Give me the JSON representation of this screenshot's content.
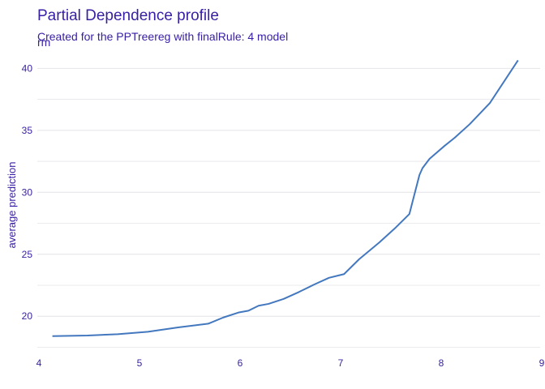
{
  "colors": {
    "text": "#371ea3",
    "grid": "#e4e4e8",
    "line": "#4378bf",
    "background": "#ffffff"
  },
  "chart_data": {
    "type": "line",
    "title": "Partial Dependence profile",
    "subtitle_lines": [
      "Created for the PPTreereg with finalRule:  4 model",
      "rm"
    ],
    "xlabel": "",
    "ylabel": "average prediction",
    "xlim": [
      4.0,
      9.0
    ],
    "ylim": [
      17.4,
      41.2
    ],
    "xticks": [
      "4",
      "5",
      "6",
      "7",
      "8",
      "9"
    ],
    "yticks": [
      "20",
      "25",
      "30",
      "35",
      "40"
    ],
    "grid": true,
    "legend": "none",
    "series": [
      {
        "x": [
          4.15,
          4.5,
          4.8,
          5.1,
          5.4,
          5.7,
          5.85,
          6.0,
          6.1,
          6.2,
          6.3,
          6.45,
          6.6,
          6.75,
          6.9,
          7.0,
          7.05,
          7.2,
          7.4,
          7.55,
          7.7,
          7.73,
          7.8,
          7.83,
          7.9,
          8.05,
          8.15,
          8.3,
          8.5,
          8.78
        ],
        "y": [
          18.4,
          18.45,
          18.55,
          18.75,
          19.1,
          19.4,
          19.9,
          20.3,
          20.45,
          20.85,
          21.0,
          21.4,
          21.95,
          22.55,
          23.1,
          23.3,
          23.4,
          24.6,
          25.95,
          27.05,
          28.25,
          29.2,
          31.4,
          31.95,
          32.7,
          33.75,
          34.4,
          35.5,
          37.2,
          40.65
        ]
      }
    ]
  }
}
